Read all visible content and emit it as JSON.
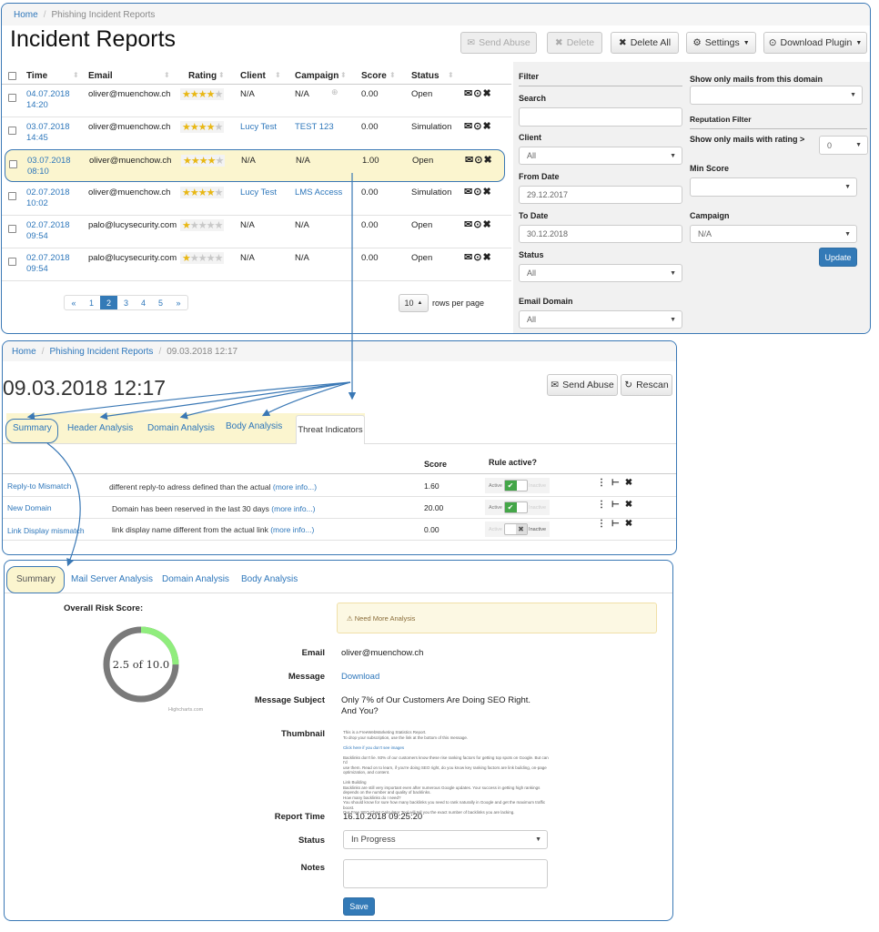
{
  "list_panel": {
    "breadcrumb": {
      "home": "Home",
      "current": "Phishing Incident Reports"
    },
    "title": "Incident Reports",
    "buttons": {
      "send_abuse": "Send Abuse",
      "delete": "Delete",
      "delete_all": "Delete All",
      "settings": "Settings",
      "download_plugin": "Download Plugin"
    },
    "columns": [
      "Time",
      "Email",
      "Rating",
      "Client",
      "Campaign",
      "Score",
      "Status"
    ],
    "rows": [
      {
        "date": "04.07.2018",
        "time": "14:20",
        "email": "oliver@muenchow.ch",
        "rating": 4,
        "client": "N/A",
        "campaign": "N/A",
        "score": "0.00",
        "status": "Open"
      },
      {
        "date": "03.07.2018",
        "time": "14:45",
        "email": "oliver@muenchow.ch",
        "rating": 4,
        "client": "Lucy Test",
        "campaign": "TEST 123",
        "score": "0.00",
        "status": "Simulation"
      },
      {
        "date": "03.07.2018",
        "time": "08:10",
        "email": "oliver@muenchow.ch",
        "rating": 4,
        "client": "N/A",
        "campaign": "N/A",
        "score": "1.00",
        "status": "Open"
      },
      {
        "date": "02.07.2018",
        "time": "10:02",
        "email": "oliver@muenchow.ch",
        "rating": 4,
        "client": "Lucy Test",
        "campaign": "LMS Access",
        "score": "0.00",
        "status": "Simulation"
      },
      {
        "date": "02.07.2018",
        "time": "09:54",
        "email": "palo@lucysecurity.com",
        "rating": 1,
        "client": "N/A",
        "campaign": "N/A",
        "score": "0.00",
        "status": "Open"
      },
      {
        "date": "02.07.2018",
        "time": "09:54",
        "email": "palo@lucysecurity.com",
        "rating": 1,
        "client": "N/A",
        "campaign": "N/A",
        "score": "0.00",
        "status": "Open"
      }
    ],
    "pagination": {
      "prev": "«",
      "pages": [
        "1",
        "2",
        "3",
        "4",
        "5"
      ],
      "active": "2",
      "next": "»"
    },
    "rows_per_page": {
      "value": "10",
      "label": "rows per page"
    },
    "filter": {
      "heading": "Filter",
      "search_label": "Search",
      "search_value": "",
      "client_label": "Client",
      "client_value": "All",
      "from_label": "From Date",
      "from_value": "29.12.2017",
      "to_label": "To Date",
      "to_value": "30.12.2018",
      "status_label": "Status",
      "status_value": "All",
      "email_domain_label": "Email Domain",
      "email_domain_value": "All",
      "domain_only_label": "Show only mails from this domain",
      "domain_only_value": "",
      "reputation_heading": "Reputation Filter",
      "rating_label": "Show only mails with rating >",
      "rating_value": "0",
      "min_score_label": "Min Score",
      "min_score_value": "",
      "campaign_label": "Campaign",
      "campaign_value": "N/A",
      "update": "Update"
    }
  },
  "detail_panel": {
    "breadcrumb": {
      "home": "Home",
      "parent": "Phishing Incident Reports",
      "current": "09.03.2018 12:17"
    },
    "title": "09.03.2018 12:17",
    "buttons": {
      "send_abuse": "Send Abuse",
      "rescan": "Rescan"
    },
    "tabs": [
      "Summary",
      "Header Analysis",
      "Domain Analysis",
      "Body Analysis",
      "Threat Indicators"
    ],
    "table_headers": {
      "score": "Score",
      "rule_active": "Rule active?"
    },
    "toggle_labels": {
      "active": "Active",
      "inactive": "Inactive"
    },
    "indicators": [
      {
        "name": "Reply-to Mismatch",
        "desc": "different reply-to adress defined than the actual",
        "more": "(more info...)",
        "score": "1.60",
        "active": true
      },
      {
        "name": "New Domain",
        "desc": "Domain has been reserved in the last 30 days",
        "more": "(more info...)",
        "score": "20.00",
        "active": true
      },
      {
        "name": "Link Display mismatch",
        "desc": "link display name different from the actual link",
        "more": "(more info...)",
        "score": "0.00",
        "active": false
      }
    ]
  },
  "summary_panel": {
    "tabs": [
      "Summary",
      "Mail Server Analysis",
      "Domain Analysis",
      "Body Analysis"
    ],
    "risk_label": "Overall Risk Score:",
    "risk_text": "2.5 of 10.0",
    "risk_value": 2.5,
    "risk_max": 10,
    "credit": "Highcharts.com",
    "alert": "Need More Analysis",
    "email_label": "Email",
    "email_value": "oliver@muenchow.ch",
    "message_label": "Message",
    "message_value": "Download",
    "subject_label": "Message Subject",
    "subject_value": "Only 7% of Our Customers Are Doing SEO Right. And You?",
    "thumbnail_label": "Thumbnail",
    "thumbnail_lines": [
      "This is a FreeWebMarketing Statistics Report.",
      "To drop your subscription, use the link at the bottom of this message.",
      "",
      "Click here if you don't see images",
      "",
      "Backlinks don't lie. 93% of our customers know these rise ranking factors for getting top spots on Google. But can I'd",
      "use them. Read on to learn, if you're doing SEO right, do you know key ranking factors are link building, on-page",
      "optimization, and content.",
      "",
      "Link Building",
      "Backlinks are still very important even after numerous Google updates. Your success in getting high rankings",
      "depends on the number and quality of backlinks.",
      "How many backlinks do I need?",
      "You should know for sure how many backlinks you need to rank naturally in Google and get the maximum traffic boost.",
      "Our Free SEO Chart Calculator Tool will tell you the exact number of backlinks you are lacking."
    ],
    "report_time_label": "Report Time",
    "report_time_value": "16.10.2018 09:25:20",
    "status_label": "Status",
    "status_value": "In Progress",
    "notes_label": "Notes",
    "notes_value": "",
    "save": "Save"
  }
}
